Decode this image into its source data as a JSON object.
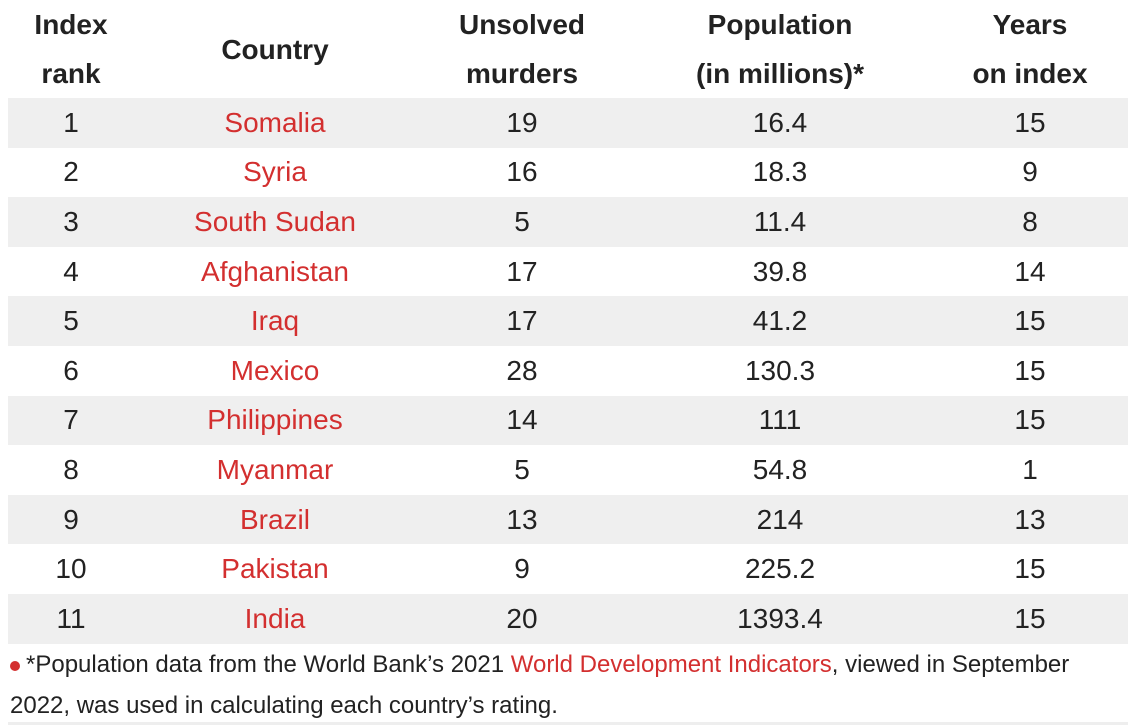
{
  "headers": [
    "Index\nrank",
    "Country",
    "Unsolved\nmurders",
    "Population\n(in millions)*",
    "Years\non index"
  ],
  "header_lines": [
    [
      "Index",
      "rank"
    ],
    [
      "Country"
    ],
    [
      "Unsolved",
      "murders"
    ],
    [
      "Population",
      "(in millions)*"
    ],
    [
      "Years",
      "on index"
    ]
  ],
  "rows": [
    [
      "1",
      "Somalia",
      "19",
      "16.4",
      "15"
    ],
    [
      "2",
      "Syria",
      "16",
      "18.3",
      "9"
    ],
    [
      "3",
      "South Sudan",
      "5",
      "11.4",
      "8"
    ],
    [
      "4",
      "Afghanistan",
      "17",
      "39.8",
      "14"
    ],
    [
      "5",
      "Iraq",
      "17",
      "41.2",
      "15"
    ],
    [
      "6",
      "Mexico",
      "28",
      "130.3",
      "15"
    ],
    [
      "7",
      "Philippines",
      "14",
      "111",
      "15"
    ],
    [
      "8",
      "Myanmar",
      "5",
      "54.8",
      "1"
    ],
    [
      "9",
      "Brazil",
      "13",
      "214",
      "13"
    ],
    [
      "10",
      "Pakistan",
      "9",
      "225.2",
      "15"
    ],
    [
      "11",
      "India",
      "20",
      "1393.4",
      "15"
    ]
  ],
  "footnote": {
    "before": "*Population data from the World Bank’s 2021 ",
    "link": "World Development Indicators",
    "after": ", viewed in September 2022, was used in calculating each country’s rating."
  },
  "colors": {
    "accent": "#d32f2f",
    "stripe": "#efefef"
  }
}
